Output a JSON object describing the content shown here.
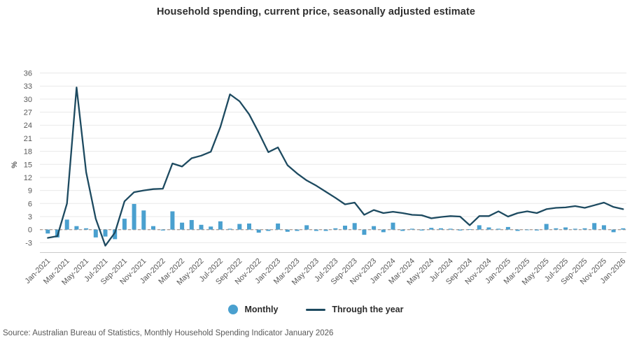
{
  "title": "Household spending, current price, seasonally adjusted estimate",
  "source": "Source: Australian Bureau of Statistics, Monthly Household Spending Indicator January 2026",
  "legend": {
    "monthly": "Monthly",
    "through_year": "Through the year"
  },
  "colors": {
    "bar": "#4aa0cf",
    "line": "#1d4a60",
    "zero_line": "#b0a098",
    "grid": "#e9e9e9",
    "axis_line": "#c9c9c9",
    "tick_text": "#595959",
    "title_text": "#2f2f2f"
  },
  "chart_data": {
    "type": "bar",
    "subtype": "bar+line combo",
    "title": "Household spending, current price, seasonally adjusted estimate",
    "ylabel": "%",
    "xlabel": "",
    "ylim": [
      -5.5,
      37.5
    ],
    "y_ticks": [
      36,
      33,
      30,
      27,
      24,
      21,
      18,
      15,
      12,
      9,
      6,
      3,
      0,
      -3
    ],
    "x_tick_label_every": 2,
    "grid": "horizontal",
    "legend_position": "bottom",
    "categories": [
      "Jan-2021",
      "Feb-2021",
      "Mar-2021",
      "Apr-2021",
      "May-2021",
      "Jun-2021",
      "Jul-2021",
      "Aug-2021",
      "Sep-2021",
      "Oct-2021",
      "Nov-2021",
      "Dec-2021",
      "Jan-2022",
      "Feb-2022",
      "Mar-2022",
      "Apr-2022",
      "May-2022",
      "Jun-2022",
      "Jul-2022",
      "Aug-2022",
      "Sep-2022",
      "Oct-2022",
      "Nov-2022",
      "Dec-2022",
      "Jan-2023",
      "Feb-2023",
      "Mar-2023",
      "Apr-2023",
      "May-2023",
      "Jun-2023",
      "Jul-2023",
      "Aug-2023",
      "Sep-2023",
      "Oct-2023",
      "Nov-2023",
      "Dec-2023",
      "Jan-2024",
      "Feb-2024",
      "Mar-2024",
      "Apr-2024",
      "May-2024",
      "Jun-2024",
      "Jul-2024",
      "Aug-2024",
      "Sep-2024",
      "Oct-2024",
      "Nov-2024",
      "Dec-2024",
      "Jan-2025",
      "Feb-2025",
      "Mar-2025",
      "Apr-2025",
      "May-2025",
      "Jun-2025",
      "Jul-2025",
      "Aug-2025",
      "Sep-2025",
      "Oct-2025",
      "Nov-2025",
      "Dec-2025",
      "Jan-2026"
    ],
    "series": [
      {
        "name": "Monthly",
        "type": "bar",
        "values": [
          -0.9,
          -1.8,
          2.3,
          0.8,
          0.3,
          -1.8,
          -1.6,
          -2.2,
          2.5,
          5.9,
          4.4,
          0.8,
          -0.2,
          4.2,
          1.6,
          2.2,
          1.1,
          0.7,
          1.9,
          0.2,
          1.3,
          1.4,
          -0.7,
          -0.3,
          1.4,
          -0.5,
          -0.3,
          1.0,
          -0.3,
          -0.3,
          0.3,
          0.9,
          1.5,
          -1.2,
          0.8,
          -0.6,
          1.6,
          -0.3,
          0.2,
          -0.2,
          0.4,
          0.3,
          0.2,
          -0.2,
          0.1,
          1.0,
          0.5,
          0.2,
          0.6,
          -0.3,
          -0.1,
          -0.2,
          1.3,
          0.3,
          0.5,
          0.2,
          0.3,
          1.5,
          1.0,
          -0.6,
          0.3
        ]
      },
      {
        "name": "Through the year",
        "type": "line",
        "values": [
          -1.9,
          -1.5,
          6.0,
          32.7,
          13.2,
          2.5,
          -3.7,
          -0.7,
          6.5,
          8.6,
          9.0,
          9.3,
          9.4,
          15.2,
          14.5,
          16.4,
          17.0,
          17.9,
          23.6,
          31.1,
          29.5,
          26.5,
          22.3,
          17.8,
          18.9,
          14.8,
          12.9,
          11.3,
          10.1,
          8.7,
          7.3,
          5.8,
          6.2,
          3.4,
          4.5,
          3.8,
          4.1,
          3.8,
          3.4,
          3.3,
          2.6,
          2.9,
          3.1,
          3.0,
          1.0,
          3.1,
          3.1,
          4.2,
          3.0,
          3.8,
          4.2,
          3.8,
          4.7,
          5.0,
          5.1,
          5.4,
          5.0,
          5.6,
          6.2,
          5.2,
          4.7
        ]
      }
    ]
  }
}
